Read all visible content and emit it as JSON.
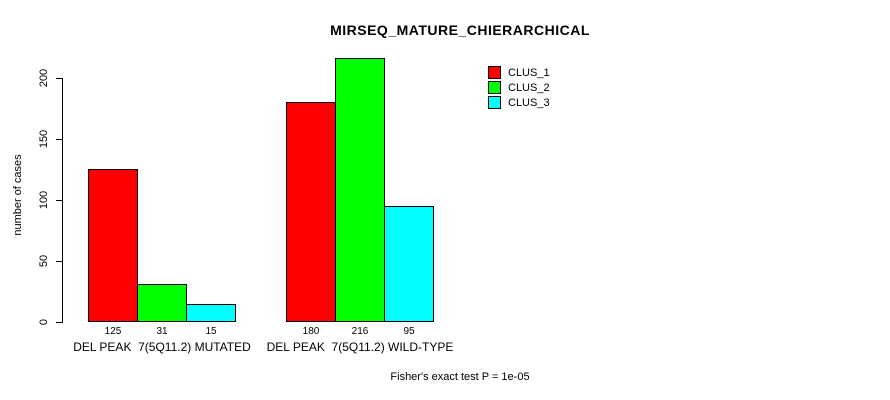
{
  "chart_data": {
    "type": "bar",
    "title": "MIRSEQ_MATURE_CHIERARCHICAL",
    "xlabel": "",
    "ylabel": "number of cases",
    "ylim": [
      0,
      200
    ],
    "yticks": [
      0,
      50,
      100,
      150,
      200
    ],
    "grid": false,
    "legend_position": "top-right",
    "bar_value_labels": true,
    "categories": [
      "DEL PEAK  7(5Q11.2) MUTATED",
      "DEL PEAK  7(5Q11.2) WILD-TYPE"
    ],
    "series": [
      {
        "name": "CLUS_1",
        "color": "#ff0000",
        "values": [
          125,
          180
        ]
      },
      {
        "name": "CLUS_2",
        "color": "#00ff00",
        "values": [
          31,
          216
        ]
      },
      {
        "name": "CLUS_3",
        "color": "#00ffff",
        "values": [
          15,
          95
        ]
      }
    ],
    "annotation": "Fisher's exact test P = 1e-05"
  }
}
